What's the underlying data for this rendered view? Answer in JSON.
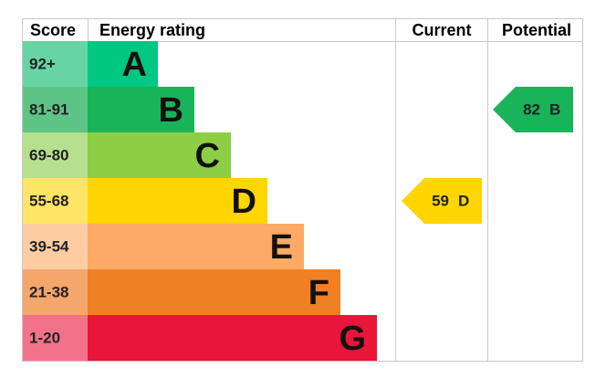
{
  "header": {
    "score": "Score",
    "rating": "Energy rating",
    "current": "Current",
    "potential": "Potential"
  },
  "bands": [
    {
      "score": "92+",
      "letter": "A",
      "color": "#00c781",
      "score_color": "#66d4a4"
    },
    {
      "score": "81-91",
      "letter": "B",
      "color": "#19b459",
      "score_color": "#5ec486"
    },
    {
      "score": "69-80",
      "letter": "C",
      "color": "#8dce46",
      "score_color": "#b6e08d"
    },
    {
      "score": "55-68",
      "letter": "D",
      "color": "#ffd500",
      "score_color": "#ffe466"
    },
    {
      "score": "39-54",
      "letter": "E",
      "color": "#fcaa65",
      "score_color": "#fdcca3"
    },
    {
      "score": "21-38",
      "letter": "F",
      "color": "#ef8023",
      "score_color": "#f5a66b"
    },
    {
      "score": "1-20",
      "letter": "G",
      "color": "#e9153b",
      "score_color": "#f27389"
    }
  ],
  "current": {
    "value": 59,
    "letter": "D"
  },
  "potential": {
    "value": 82,
    "letter": "B"
  }
}
